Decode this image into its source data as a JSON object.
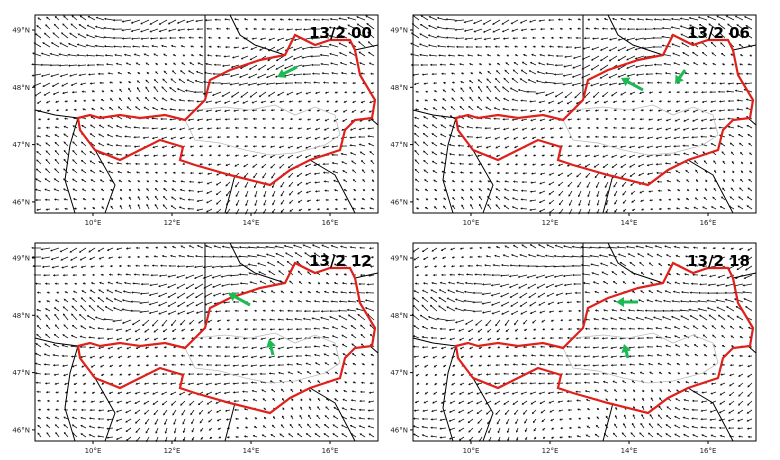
{
  "panels": [
    {
      "label": "13/2 00"
    },
    {
      "label": "13/2 06"
    },
    {
      "label": "13/2 12"
    },
    {
      "label": "13/2 18"
    }
  ],
  "lat_labels": [
    "49°N",
    "48°N",
    "47°N",
    "46°N"
  ],
  "lon_labels": [
    "10°E",
    "12°E",
    "14°E",
    "16°E"
  ]
}
